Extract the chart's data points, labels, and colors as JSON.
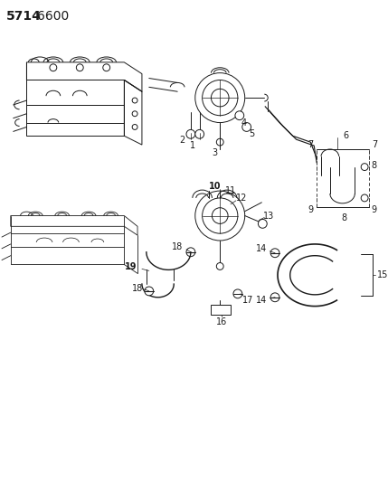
{
  "bg_color": "#ffffff",
  "line_color": "#1a1a1a",
  "title_5714": "5714",
  "title_6600": "6600",
  "fig_width": 4.29,
  "fig_height": 5.33,
  "dpi": 100
}
